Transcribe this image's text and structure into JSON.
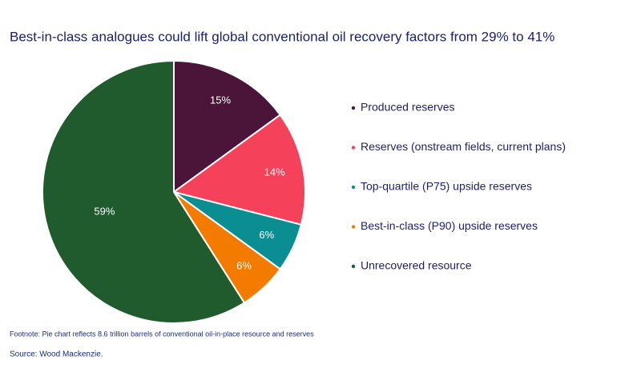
{
  "chart_data": {
    "type": "pie",
    "title": "Best-in-class analogues could lift global conventional oil recovery factors from 29% to 41%",
    "categories": [
      "Produced reserves",
      "Reserves (onstream fields, current plans)",
      "Top-quartile (P75) upside reserves",
      "Best-in-class (P90) upside reserves",
      "Unrecovered resource"
    ],
    "values": [
      15,
      14,
      6,
      6,
      59
    ],
    "value_labels": [
      "15%",
      "14%",
      "6%",
      "6%",
      "59%"
    ],
    "colors": [
      "#4b1539",
      "#f5425a",
      "#0b8e92",
      "#f27b00",
      "#1f5b2d"
    ],
    "footnote": "Footnote: Pie chart reflects 8.6 trillion barrels of conventional oil-in-place resource and reserves",
    "source": "Source: Wood Mackenzie."
  }
}
